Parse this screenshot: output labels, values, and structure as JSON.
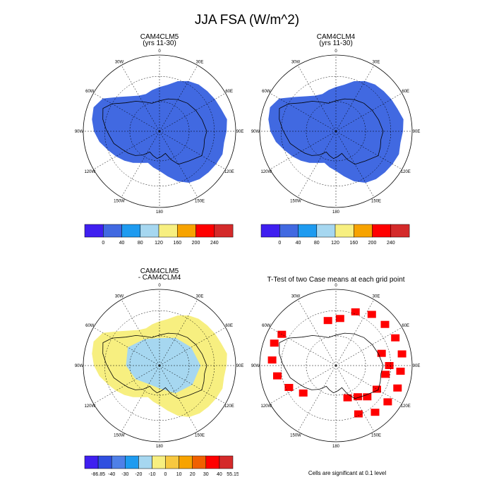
{
  "title": "JJA FSA (W/m^2)",
  "chart_data": [
    {
      "type": "heatmap",
      "projection": "south-polar-stereographic",
      "title": "CAM4CLM5",
      "subtitle": "(yrs 11-30)",
      "lon_labels": [
        "0",
        "30E",
        "60E",
        "90E",
        "120E",
        "150E",
        "180",
        "150W",
        "120W",
        "90W",
        "60W",
        "30W"
      ],
      "field_value_range": [
        0,
        40
      ],
      "field_color": "#4169e1",
      "colorbar": {
        "colors": [
          "#3f1ff0",
          "#4169e1",
          "#1e9bf0",
          "#a6d7f0",
          "#f7ef80",
          "#f7a300",
          "#ff0000",
          "#d42a2a"
        ],
        "labels": [
          "0",
          "40",
          "80",
          "120",
          "160",
          "200",
          "240"
        ]
      }
    },
    {
      "type": "heatmap",
      "projection": "south-polar-stereographic",
      "title": "CAM4CLM4",
      "subtitle": "(yrs 11-30)",
      "lon_labels": [
        "0",
        "30E",
        "60E",
        "90E",
        "120E",
        "150E",
        "180",
        "150W",
        "120W",
        "90W",
        "60W",
        "30W"
      ],
      "field_value_range": [
        0,
        40
      ],
      "field_color": "#4169e1",
      "colorbar": {
        "colors": [
          "#3f1ff0",
          "#4169e1",
          "#1e9bf0",
          "#a6d7f0",
          "#f7ef80",
          "#f7a300",
          "#ff0000",
          "#d42a2a"
        ],
        "labels": [
          "0",
          "40",
          "80",
          "120",
          "160",
          "200",
          "240"
        ]
      }
    },
    {
      "type": "heatmap",
      "projection": "south-polar-stereographic",
      "title": "CAM4CLM5",
      "subtitle": "- CAM4CLM4",
      "lon_labels": [
        "0",
        "30E",
        "60E",
        "90E",
        "120E",
        "150E",
        "180",
        "150W",
        "120W",
        "90W",
        "60W",
        "30W"
      ],
      "fields": [
        {
          "value_range": [
            0,
            10
          ],
          "color": "#f7ef80"
        },
        {
          "value_range": [
            -10,
            0
          ],
          "color": "#a6d7f0"
        }
      ],
      "colorbar": {
        "colors": [
          "#3f1ff0",
          "#2f4fe0",
          "#4f80e8",
          "#1e9bf0",
          "#a6d7f0",
          "#f7ef80",
          "#f7c840",
          "#f7a300",
          "#f06000",
          "#ff0000",
          "#d42a2a"
        ],
        "labels": [
          "-86.85",
          "-40",
          "-30",
          "-20",
          "-10",
          "0",
          "10",
          "20",
          "30",
          "40",
          "55.15"
        ]
      }
    },
    {
      "type": "heatmap",
      "projection": "south-polar-stereographic",
      "title": "T-Test of two Case means at each grid point",
      "lon_labels": [
        "0",
        "30E",
        "60E",
        "90E",
        "120E",
        "150E",
        "180",
        "150W",
        "120W",
        "90W",
        "60W",
        "30W"
      ],
      "significant_color": "#ff0000",
      "note": "Cells are significant at 0.1 level"
    }
  ]
}
